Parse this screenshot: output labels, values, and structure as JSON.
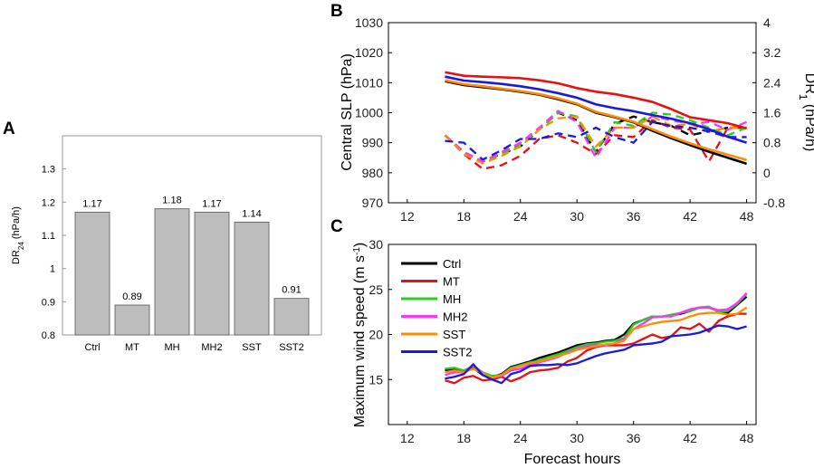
{
  "panels": {
    "a_letter": "A",
    "b_letter": "B",
    "c_letter": "C"
  },
  "chart_data": [
    {
      "type": "bar",
      "panel": "A",
      "categories": [
        "Ctrl",
        "MT",
        "MH",
        "MH2",
        "SST",
        "SST2"
      ],
      "values": [
        1.17,
        0.89,
        1.18,
        1.17,
        1.14,
        0.91
      ],
      "value_labels": [
        "1.17",
        "0.89",
        "1.18",
        "1.17",
        "1.14",
        "0.91"
      ],
      "ylabel_main": "DR",
      "ylabel_sub": "24",
      "ylabel_unit": " (hPa/h)",
      "ylim": [
        0.8,
        1.4
      ],
      "yticks": [
        0.8,
        0.9,
        1.0,
        1.1,
        1.2,
        1.3
      ],
      "ytick_labels": [
        "0.8",
        "0.9",
        "1",
        "1.1",
        "1.2",
        "1.3"
      ],
      "colors": {
        "bar": "#bdbdbd",
        "edge": "#555555"
      }
    },
    {
      "type": "line",
      "panel": "B",
      "xlim": [
        10,
        49
      ],
      "xticks": [
        12,
        18,
        24,
        30,
        36,
        42,
        48
      ],
      "ylabel_left": "Central SLP (hPa)",
      "ylim_left": [
        970,
        1030
      ],
      "yticks_left": [
        970,
        980,
        990,
        1000,
        1010,
        1020,
        1030
      ],
      "ylabel_right_main": "DR",
      "ylabel_right_sub": "1",
      "ylabel_right_unit": " (hPa/h)",
      "ylim_right": [
        -0.8,
        4.0
      ],
      "yticks_right": [
        -0.8,
        0,
        0.8,
        1.6,
        2.4,
        3.2,
        4
      ],
      "ytick_labels_right": [
        "-0.8",
        "0",
        "0.8",
        "1.6",
        "2.4",
        "3.2",
        "4"
      ],
      "x": [
        16,
        18,
        20,
        22,
        24,
        26,
        28,
        30,
        32,
        34,
        36,
        38,
        40,
        42,
        44,
        46,
        48
      ],
      "slp_series": [
        {
          "name": "Ctrl",
          "color": "#000000",
          "values": [
            1010.5,
            1009.2,
            1008.5,
            1007.8,
            1007.0,
            1006.0,
            1004.5,
            1002.8,
            1000.0,
            998.5,
            996.8,
            994.0,
            991.5,
            989.2,
            987.0,
            985.0,
            983.0
          ]
        },
        {
          "name": "SST",
          "color": "#ff8c00",
          "values": [
            1010.8,
            1009.5,
            1008.8,
            1008.0,
            1007.2,
            1006.2,
            1004.8,
            1003.0,
            1000.3,
            998.7,
            997.0,
            994.5,
            992.0,
            989.8,
            987.8,
            986.0,
            984.2
          ]
        },
        {
          "name": "SST2",
          "color": "#1a1adc",
          "values": [
            1012.0,
            1010.7,
            1010.2,
            1009.6,
            1008.8,
            1007.8,
            1006.5,
            1005.0,
            1002.8,
            1001.5,
            1000.5,
            999.2,
            998.0,
            996.5,
            994.5,
            992.0,
            990.0
          ]
        },
        {
          "name": "MT",
          "color": "#e81010",
          "values": [
            1013.5,
            1012.3,
            1012.0,
            1011.8,
            1011.5,
            1010.8,
            1009.8,
            1008.2,
            1007.0,
            1006.2,
            1005.0,
            1003.6,
            1001.2,
            998.5,
            997.5,
            996.5,
            994.8
          ]
        }
      ],
      "dr_series": [
        {
          "name": "Ctrl",
          "color": "#000000",
          "values": [
            1.0,
            0.55,
            0.3,
            0.5,
            0.7,
            1.15,
            1.6,
            1.4,
            0.55,
            1.3,
            1.5,
            1.35,
            1.25,
            1.0,
            1.1,
            1.2,
            1.2
          ]
        },
        {
          "name": "MT",
          "color": "#e81010",
          "values": [
            1.0,
            0.5,
            0.1,
            0.2,
            0.45,
            0.9,
            1.0,
            0.8,
            0.5,
            1.0,
            0.95,
            1.4,
            1.2,
            1.15,
            0.3,
            1.2,
            1.2
          ]
        },
        {
          "name": "MH",
          "color": "#22d022",
          "values": [
            1.0,
            0.5,
            0.3,
            0.5,
            0.75,
            1.15,
            1.6,
            1.5,
            0.55,
            1.35,
            1.25,
            1.6,
            1.55,
            1.4,
            1.2,
            1.0,
            1.2
          ]
        },
        {
          "name": "MH2",
          "color": "#ff33ff",
          "values": [
            1.0,
            0.55,
            0.3,
            0.55,
            0.8,
            1.2,
            1.65,
            1.35,
            0.4,
            1.2,
            1.2,
            1.5,
            1.4,
            1.3,
            1.35,
            1.15,
            1.35
          ]
        },
        {
          "name": "SST",
          "color": "#ff8c00",
          "values": [
            1.0,
            0.5,
            0.25,
            0.45,
            0.7,
            1.15,
            1.45,
            1.5,
            0.7,
            1.2,
            1.2,
            1.5,
            1.25,
            1.3,
            1.1,
            1.2,
            1.2
          ]
        },
        {
          "name": "SST2",
          "color": "#1a1adc",
          "values": [
            0.85,
            0.8,
            0.35,
            0.6,
            0.9,
            0.9,
            1.05,
            0.95,
            1.2,
            0.95,
            0.8,
            1.35,
            1.25,
            1.2,
            1.1,
            0.95,
            0.95
          ]
        }
      ]
    },
    {
      "type": "line",
      "panel": "C",
      "xlabel": "Forecast hours",
      "xlim": [
        10,
        49
      ],
      "xticks": [
        12,
        18,
        24,
        30,
        36,
        42,
        48
      ],
      "ylabel_main": "Maximum wind speed (m s",
      "ylabel_sup": "-1",
      "ylabel_close": ")",
      "ylim": [
        10,
        30
      ],
      "yticks": [
        15,
        20,
        25,
        30
      ],
      "legend_position": "top-left",
      "x": [
        16,
        17,
        18,
        19,
        20,
        21,
        22,
        23,
        24,
        25,
        26,
        27,
        28,
        29,
        30,
        31,
        32,
        33,
        34,
        35,
        36,
        37,
        38,
        39,
        40,
        41,
        42,
        43,
        44,
        45,
        46,
        47,
        48
      ],
      "series": [
        {
          "name": "Ctrl",
          "color": "#000000",
          "values": [
            16.0,
            16.2,
            15.9,
            16.3,
            15.5,
            15.3,
            15.6,
            16.4,
            16.7,
            17.0,
            17.4,
            17.7,
            18.0,
            18.4,
            18.8,
            19.0,
            19.1,
            19.3,
            19.4,
            20.0,
            21.2,
            21.6,
            22.0,
            22.0,
            22.1,
            22.3,
            22.6,
            23.0,
            23.0,
            22.6,
            22.4,
            23.3,
            24.2
          ]
        },
        {
          "name": "MT",
          "color": "#e81010",
          "values": [
            14.9,
            14.6,
            15.2,
            15.4,
            14.9,
            15.0,
            15.3,
            14.8,
            15.2,
            15.8,
            16.0,
            16.1,
            16.3,
            17.0,
            17.4,
            18.2,
            18.6,
            18.8,
            18.8,
            18.8,
            19.0,
            19.5,
            20.0,
            19.6,
            19.8,
            20.8,
            20.6,
            21.2,
            20.3,
            21.5,
            22.0,
            22.3,
            22.3
          ]
        },
        {
          "name": "MH",
          "color": "#22d022",
          "values": [
            16.2,
            16.3,
            16.0,
            16.5,
            15.8,
            15.4,
            15.5,
            16.3,
            16.6,
            16.9,
            17.1,
            17.5,
            17.8,
            18.2,
            18.6,
            18.9,
            19.0,
            19.2,
            19.3,
            19.6,
            21.1,
            21.6,
            22.0,
            22.0,
            22.2,
            22.4,
            22.6,
            23.0,
            23.1,
            22.5,
            22.6,
            23.4,
            24.5
          ]
        },
        {
          "name": "MH2",
          "color": "#ff33ff",
          "values": [
            15.5,
            15.8,
            15.8,
            16.6,
            15.7,
            15.2,
            15.4,
            16.0,
            16.2,
            16.6,
            16.9,
            17.2,
            17.5,
            18.0,
            18.4,
            18.7,
            18.8,
            18.8,
            19.0,
            19.5,
            20.6,
            21.2,
            21.9,
            22.0,
            22.0,
            22.4,
            22.8,
            23.0,
            23.0,
            22.7,
            22.8,
            23.5,
            24.6
          ]
        },
        {
          "name": "SST",
          "color": "#ff8c00",
          "values": [
            15.8,
            16.0,
            15.8,
            16.2,
            15.7,
            15.2,
            15.5,
            16.2,
            16.5,
            16.8,
            17.0,
            17.3,
            17.6,
            17.9,
            18.3,
            18.5,
            18.7,
            18.9,
            19.0,
            19.3,
            20.6,
            20.9,
            21.2,
            21.4,
            21.5,
            21.6,
            22.0,
            22.3,
            22.4,
            22.4,
            22.2,
            22.3,
            23.0
          ]
        },
        {
          "name": "SST2",
          "color": "#1a1adc",
          "values": [
            15.1,
            15.3,
            15.6,
            16.7,
            15.5,
            15.0,
            14.6,
            15.6,
            15.9,
            16.5,
            16.6,
            16.6,
            16.7,
            16.6,
            16.8,
            17.2,
            17.6,
            17.9,
            18.1,
            18.3,
            18.8,
            18.9,
            19.0,
            19.2,
            19.8,
            19.9,
            20.0,
            20.2,
            20.6,
            21.0,
            20.9,
            20.6,
            20.9
          ]
        }
      ]
    }
  ]
}
